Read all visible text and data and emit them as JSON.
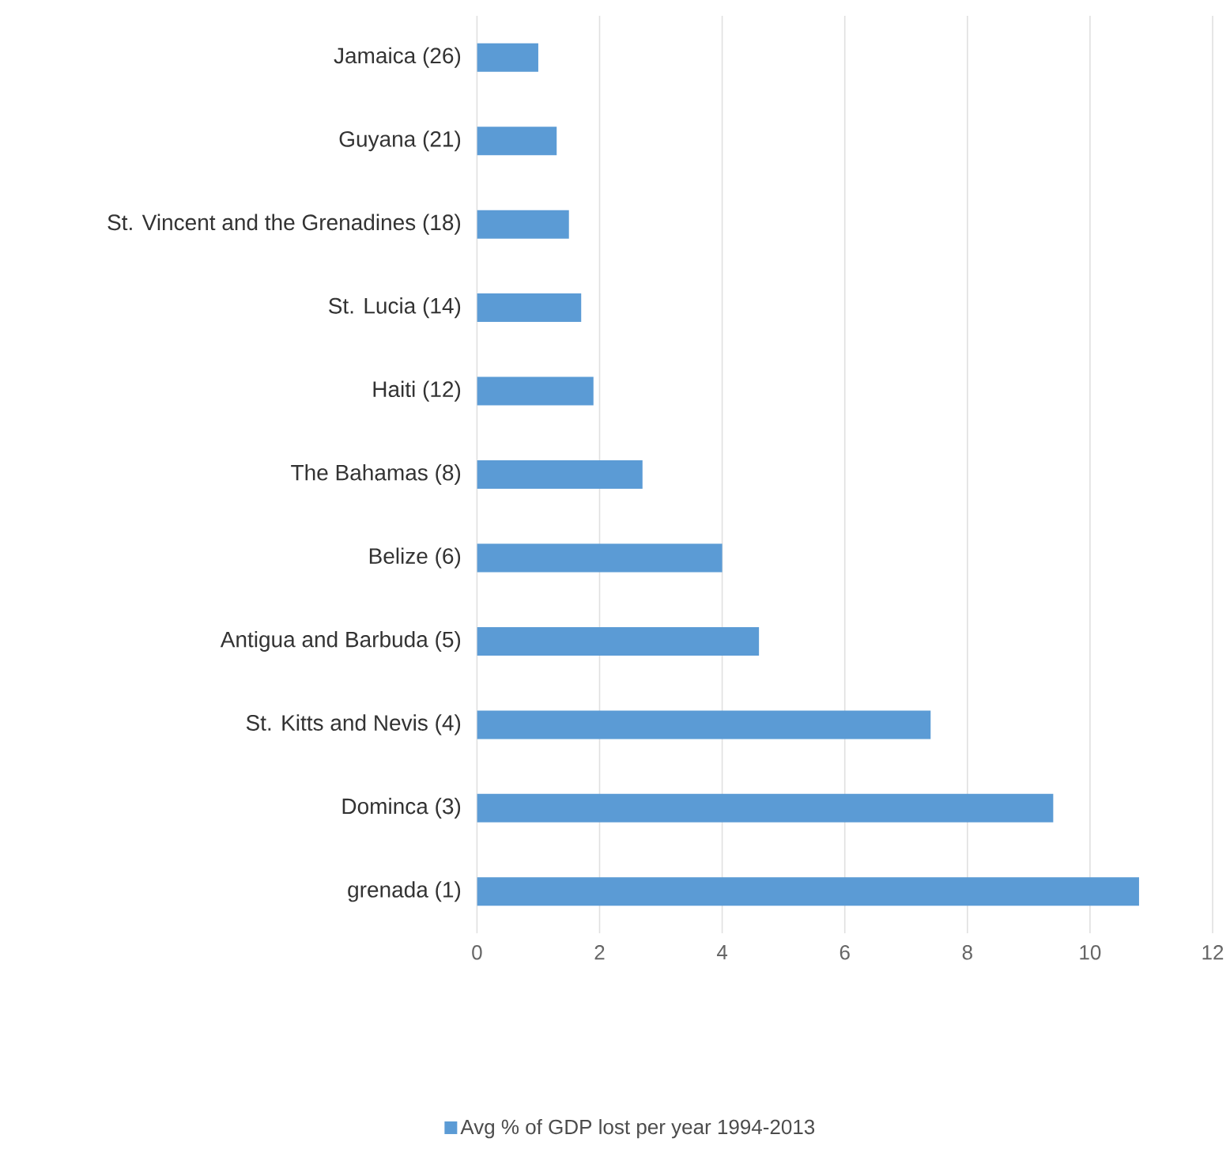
{
  "chart_data": {
    "type": "bar",
    "orientation": "horizontal",
    "categories": [
      "Jamaica (26)",
      "Guyana (21)",
      "St. Vincent and the Grenadines (18)",
      "St. Lucia (14)",
      "Haiti (12)",
      "The Bahamas (8)",
      "Belize (6)",
      "Antigua and Barbuda (5)",
      "St. Kitts and Nevis (4)",
      "Dominca (3)",
      "grenada (1)"
    ],
    "series": [
      {
        "name": "Avg % of GDP lost per year 1994-2013",
        "color": "#5b9bd5",
        "values": [
          1.0,
          1.3,
          1.5,
          1.7,
          1.9,
          2.7,
          4.0,
          4.6,
          7.4,
          9.4,
          10.8
        ]
      }
    ],
    "xlim": [
      0,
      12
    ],
    "xticks": [
      0,
      2,
      4,
      6,
      8,
      10,
      12
    ],
    "grid": "x",
    "legend": "bottom"
  }
}
